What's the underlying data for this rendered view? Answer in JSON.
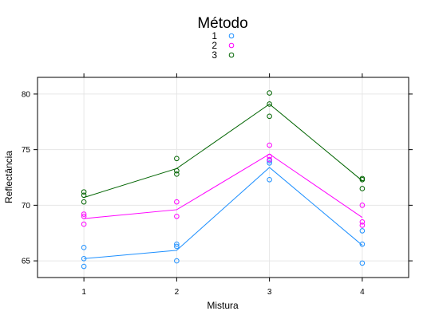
{
  "chart_data": {
    "type": "line",
    "title": "",
    "xlabel": "Mistura",
    "ylabel": "Reflectância",
    "xlim": [
      0.5,
      4.5
    ],
    "ylim": [
      63.5,
      81.5
    ],
    "x_ticks": [
      1,
      2,
      3,
      4
    ],
    "y_ticks": [
      65,
      70,
      75,
      80
    ],
    "grid": true,
    "legend": {
      "title": "Método",
      "placement": "top",
      "entries": [
        "1",
        "2",
        "3"
      ]
    },
    "series": [
      {
        "name": "1",
        "color": "#1e90ff",
        "line": [
          {
            "x": 1,
            "y": 65.2
          },
          {
            "x": 2,
            "y": 65.95
          },
          {
            "x": 3,
            "y": 73.4
          },
          {
            "x": 4,
            "y": 66.4
          }
        ],
        "points": [
          {
            "x": 1,
            "y": 66.2
          },
          {
            "x": 1,
            "y": 65.2
          },
          {
            "x": 1,
            "y": 64.5
          },
          {
            "x": 2,
            "y": 66.5
          },
          {
            "x": 2,
            "y": 66.3
          },
          {
            "x": 2,
            "y": 65.0
          },
          {
            "x": 3,
            "y": 74.0
          },
          {
            "x": 3,
            "y": 73.8
          },
          {
            "x": 3,
            "y": 72.3
          },
          {
            "x": 4,
            "y": 67.7
          },
          {
            "x": 4,
            "y": 66.5
          },
          {
            "x": 4,
            "y": 64.8
          }
        ]
      },
      {
        "name": "2",
        "color": "#ff00ff",
        "line": [
          {
            "x": 1,
            "y": 68.8
          },
          {
            "x": 2,
            "y": 69.6
          },
          {
            "x": 3,
            "y": 74.6
          },
          {
            "x": 4,
            "y": 68.9
          }
        ],
        "points": [
          {
            "x": 1,
            "y": 69.2
          },
          {
            "x": 1,
            "y": 69.0
          },
          {
            "x": 1,
            "y": 68.3
          },
          {
            "x": 2,
            "y": 70.3
          },
          {
            "x": 2,
            "y": 69.0
          },
          {
            "x": 3,
            "y": 75.4
          },
          {
            "x": 3,
            "y": 74.4
          },
          {
            "x": 3,
            "y": 74.1
          },
          {
            "x": 4,
            "y": 70.0
          },
          {
            "x": 4,
            "y": 68.5
          },
          {
            "x": 4,
            "y": 68.2
          }
        ]
      },
      {
        "name": "3",
        "color": "#006400",
        "line": [
          {
            "x": 1,
            "y": 70.7
          },
          {
            "x": 2,
            "y": 73.3
          },
          {
            "x": 3,
            "y": 79.1
          },
          {
            "x": 4,
            "y": 72.2
          }
        ],
        "points": [
          {
            "x": 1,
            "y": 71.2
          },
          {
            "x": 1,
            "y": 70.9
          },
          {
            "x": 1,
            "y": 70.3
          },
          {
            "x": 2,
            "y": 74.2
          },
          {
            "x": 2,
            "y": 73.1
          },
          {
            "x": 2,
            "y": 72.8
          },
          {
            "x": 3,
            "y": 80.1
          },
          {
            "x": 3,
            "y": 79.1
          },
          {
            "x": 3,
            "y": 78.0
          },
          {
            "x": 4,
            "y": 72.4
          },
          {
            "x": 4,
            "y": 72.3
          },
          {
            "x": 4,
            "y": 71.5
          }
        ]
      }
    ]
  }
}
